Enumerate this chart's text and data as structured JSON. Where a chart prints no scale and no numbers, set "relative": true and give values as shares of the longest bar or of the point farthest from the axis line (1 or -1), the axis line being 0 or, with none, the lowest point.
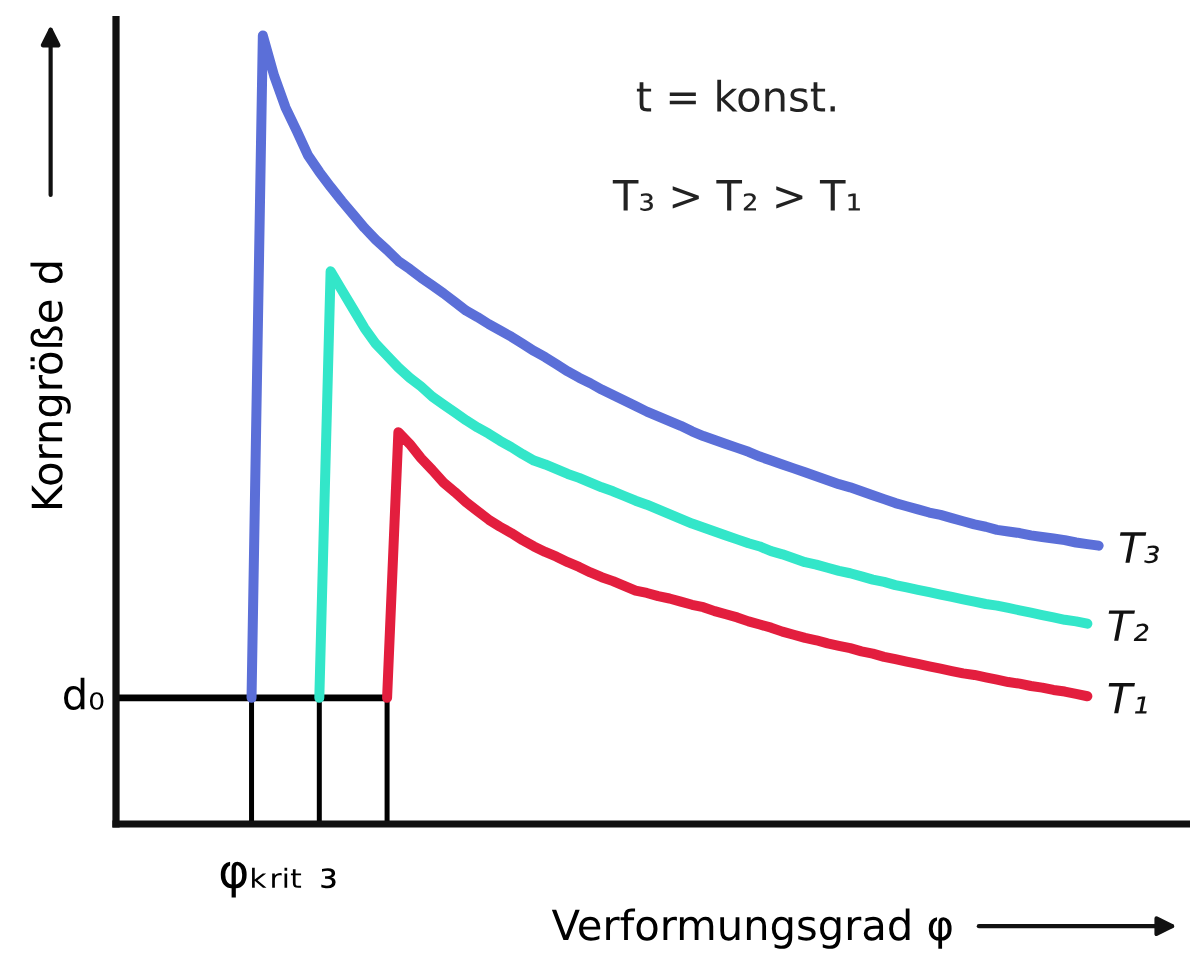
{
  "chart_data": {
    "type": "line",
    "xlabel": "Verformungsgrad φ",
    "ylabel": "Korngröße d",
    "relative": true,
    "line_style": "solid",
    "annotations": [
      "t = konst.",
      "T₃ > T₂ > T₁",
      "φₖᵣᵢₜ ₃"
    ],
    "categories": [
      null,
      null,
      null,
      null,
      null,
      null,
      null,
      null,
      null,
      null,
      null,
      null,
      null,
      null,
      null,
      null,
      null,
      null,
      null,
      null,
      null,
      null,
      null,
      null,
      null,
      null,
      null,
      null,
      null,
      null,
      null,
      null,
      null,
      null,
      null,
      null,
      null,
      null,
      null,
      null,
      null,
      null,
      null,
      null,
      null,
      null,
      null,
      null,
      null,
      null,
      null,
      null,
      null,
      null,
      null,
      null,
      null,
      null,
      null,
      null,
      null,
      null,
      null,
      null,
      null,
      null,
      null,
      null,
      null,
      null,
      null,
      null,
      null,
      null,
      null,
      null
    ],
    "series": [
      {
        "name": "T₃",
        "color": "#5b6fd8",
        "values": [
          0.16,
          1.0,
          0.949,
          0.909,
          0.879,
          0.848,
          0.827,
          0.808,
          0.79,
          0.773,
          0.756,
          0.741,
          0.728,
          0.714,
          0.704,
          0.693,
          0.683,
          0.673,
          0.662,
          0.651,
          0.643,
          0.634,
          0.626,
          0.618,
          0.609,
          0.6,
          0.592,
          0.583,
          0.574,
          0.566,
          0.559,
          0.551,
          0.544,
          0.537,
          0.53,
          0.523,
          0.517,
          0.511,
          0.505,
          0.498,
          0.492,
          0.487,
          0.482,
          0.477,
          0.472,
          0.466,
          0.461,
          0.456,
          0.451,
          0.446,
          0.441,
          0.436,
          0.431,
          0.427,
          0.422,
          0.417,
          0.412,
          0.407,
          0.403,
          0.399,
          0.395,
          0.392,
          0.388,
          0.384,
          0.38,
          0.377,
          0.373,
          0.371,
          0.369,
          0.366,
          0.364,
          0.362,
          0.36,
          0.357,
          0.355,
          0.353
        ]
      },
      {
        "name": "T₂",
        "color": "#33e6c9",
        "values": [
          null,
          null,
          null,
          null,
          null,
          null,
          0.16,
          0.701,
          0.677,
          0.653,
          0.629,
          0.609,
          0.594,
          0.579,
          0.566,
          0.555,
          0.542,
          0.532,
          0.522,
          0.512,
          0.503,
          0.495,
          0.486,
          0.478,
          0.469,
          0.461,
          0.456,
          0.45,
          0.444,
          0.439,
          0.433,
          0.427,
          0.422,
          0.416,
          0.41,
          0.405,
          0.399,
          0.393,
          0.387,
          0.381,
          0.376,
          0.371,
          0.366,
          0.361,
          0.356,
          0.352,
          0.346,
          0.342,
          0.337,
          0.332,
          0.329,
          0.325,
          0.321,
          0.318,
          0.314,
          0.31,
          0.307,
          0.303,
          0.3,
          0.297,
          0.294,
          0.291,
          0.288,
          0.285,
          0.282,
          0.279,
          0.277,
          0.274,
          0.271,
          0.268,
          0.265,
          0.262,
          0.259,
          0.257,
          0.254,
          null
        ]
      },
      {
        "name": "T₁",
        "color": "#e31e3e",
        "values": [
          null,
          null,
          null,
          null,
          null,
          null,
          null,
          null,
          null,
          null,
          null,
          null,
          0.16,
          0.497,
          0.482,
          0.464,
          0.449,
          0.433,
          0.421,
          0.408,
          0.397,
          0.386,
          0.377,
          0.369,
          0.36,
          0.352,
          0.345,
          0.339,
          0.332,
          0.326,
          0.319,
          0.313,
          0.308,
          0.302,
          0.296,
          0.293,
          0.289,
          0.286,
          0.282,
          0.278,
          0.275,
          0.27,
          0.266,
          0.262,
          0.257,
          0.253,
          0.249,
          0.244,
          0.24,
          0.236,
          0.233,
          0.229,
          0.226,
          0.223,
          0.219,
          0.216,
          0.212,
          0.209,
          0.206,
          0.203,
          0.2,
          0.197,
          0.194,
          0.191,
          0.189,
          0.186,
          0.183,
          0.18,
          0.178,
          0.175,
          0.173,
          0.17,
          0.168,
          0.165,
          0.162,
          null
        ]
      }
    ],
    "ref_lines": [
      {
        "axis": "y",
        "value": 0.16,
        "label": "d₀",
        "color": "#000000"
      }
    ]
  }
}
